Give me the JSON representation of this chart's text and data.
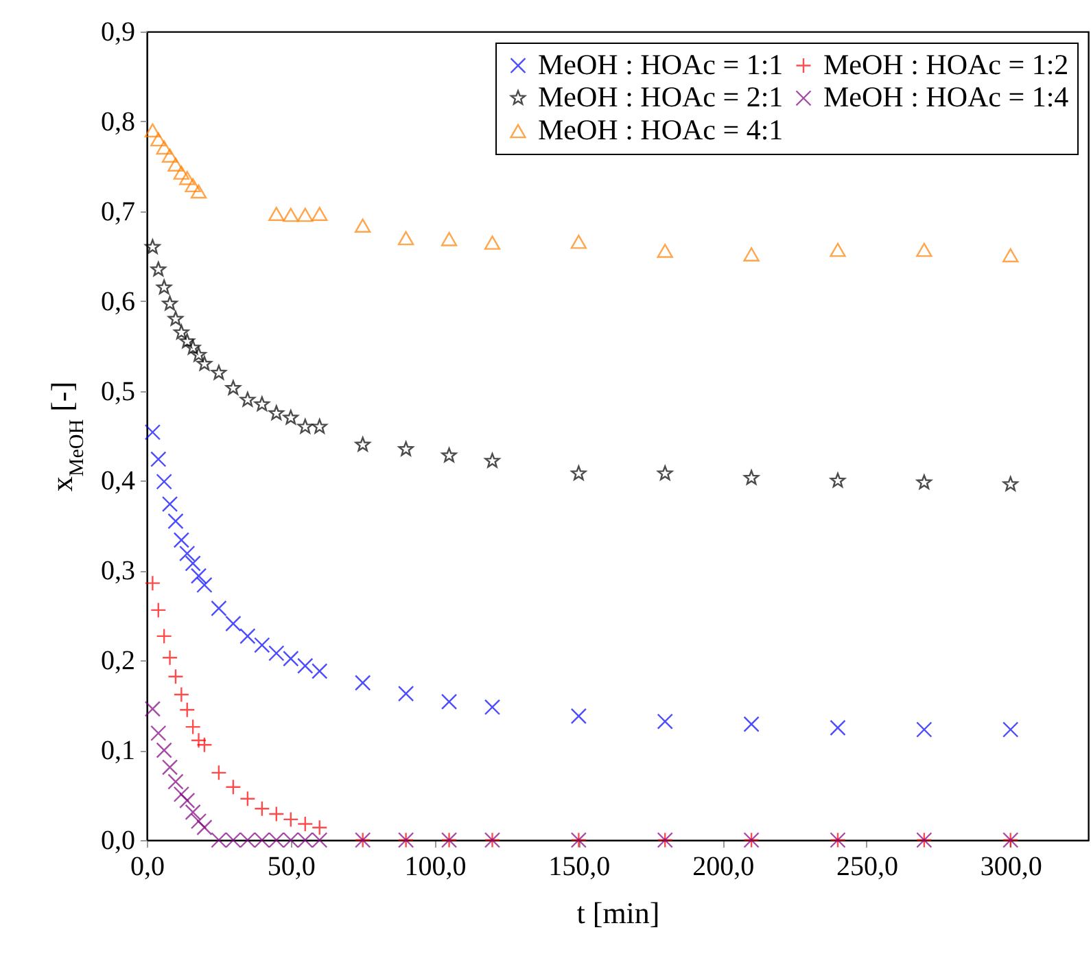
{
  "chart_data": {
    "type": "scatter",
    "xlabel": "t [min]",
    "ylabel": "x$_{MeOH}$ [-]",
    "x": [
      2,
      4,
      6,
      8,
      10,
      12,
      14,
      16,
      18,
      20,
      25,
      30,
      35,
      40,
      45,
      50,
      55,
      60,
      75,
      90,
      105,
      120,
      150,
      180,
      210,
      240,
      270,
      300
    ],
    "xlim": [
      0,
      327
    ],
    "xticks": [
      {
        "value": 0,
        "label": "0,0"
      },
      {
        "value": 50,
        "label": "50,0"
      },
      {
        "value": 100,
        "label": "100,0"
      },
      {
        "value": 150,
        "label": "150,0"
      },
      {
        "value": 200,
        "label": "200,0"
      },
      {
        "value": 250,
        "label": "250,0"
      },
      {
        "value": 300,
        "label": "300,0"
      }
    ],
    "ylim": [
      0,
      0.9
    ],
    "yticks": [
      {
        "value": 0,
        "label": "0,0"
      },
      {
        "value": 0.1,
        "label": "0,1"
      },
      {
        "value": 0.2,
        "label": "0,2"
      },
      {
        "value": 0.3,
        "label": "0,3"
      },
      {
        "value": 0.4,
        "label": "0,4"
      },
      {
        "value": 0.5,
        "label": "0,5"
      },
      {
        "value": 0.6,
        "label": "0,6"
      },
      {
        "value": 0.7,
        "label": "0,7"
      },
      {
        "value": 0.8,
        "label": "0,8"
      },
      {
        "value": 0.9,
        "label": "0,9"
      }
    ],
    "legend": "top right",
    "series": [
      {
        "name": "MeOH : HOAc = 1:1",
        "color": "#0000ff",
        "marker": "cross",
        "values": [
          0.454,
          0.424,
          0.399,
          0.374,
          0.355,
          0.334,
          0.319,
          0.308,
          0.294,
          0.284,
          0.258,
          0.241,
          0.227,
          0.217,
          0.208,
          0.202,
          0.194,
          0.188,
          0.175,
          0.163,
          0.154,
          0.148,
          0.138,
          0.132,
          0.129,
          0.125,
          0.123,
          0.123
        ]
      },
      {
        "name": "MeOH : HOAc = 1:2",
        "color": "#ff0000",
        "marker": "plus",
        "values": [
          0.286,
          0.256,
          0.227,
          0.203,
          0.182,
          0.162,
          0.145,
          0.126,
          0.111,
          0.106,
          0.075,
          0.059,
          0.046,
          0.035,
          0.029,
          0.023,
          0.018,
          0.014,
          0,
          0,
          0,
          0,
          0,
          0,
          0,
          0,
          0,
          0
        ]
      },
      {
        "name": "MeOH : HOAc = 2:1",
        "color": "#000000",
        "marker": "star",
        "values": [
          0.66,
          0.635,
          0.615,
          0.597,
          0.58,
          0.565,
          0.555,
          0.548,
          0.54,
          0.53,
          0.52,
          0.503,
          0.49,
          0.485,
          0.475,
          0.47,
          0.46,
          0.46,
          0.44,
          0.435,
          0.428,
          0.422,
          0.408,
          0.408,
          0.403,
          0.4,
          0.398,
          0.396
        ]
      },
      {
        "name": "MeOH : HOAc = 1:4",
        "color": "#800080",
        "marker": "cross",
        "values": [
          0.146,
          0.119,
          0.1,
          0.081,
          0.065,
          0.051,
          0.044,
          0.031,
          0.021,
          0.014,
          0,
          0,
          0,
          0,
          0,
          0,
          0,
          0,
          0,
          0,
          0,
          0,
          0,
          0,
          0,
          0,
          0,
          0
        ]
      },
      {
        "name": "MeOH : HOAc = 4:1",
        "color": "#ff8000",
        "marker": "triangle",
        "values": [
          0.79,
          0.78,
          0.771,
          0.762,
          0.752,
          0.743,
          0.737,
          0.729,
          0.722,
          null,
          null,
          null,
          null,
          null,
          0.697,
          0.696,
          0.696,
          0.697,
          0.684,
          0.67,
          0.669,
          0.665,
          0.666,
          0.656,
          0.652,
          0.657,
          0.657,
          0.651
        ]
      }
    ]
  }
}
